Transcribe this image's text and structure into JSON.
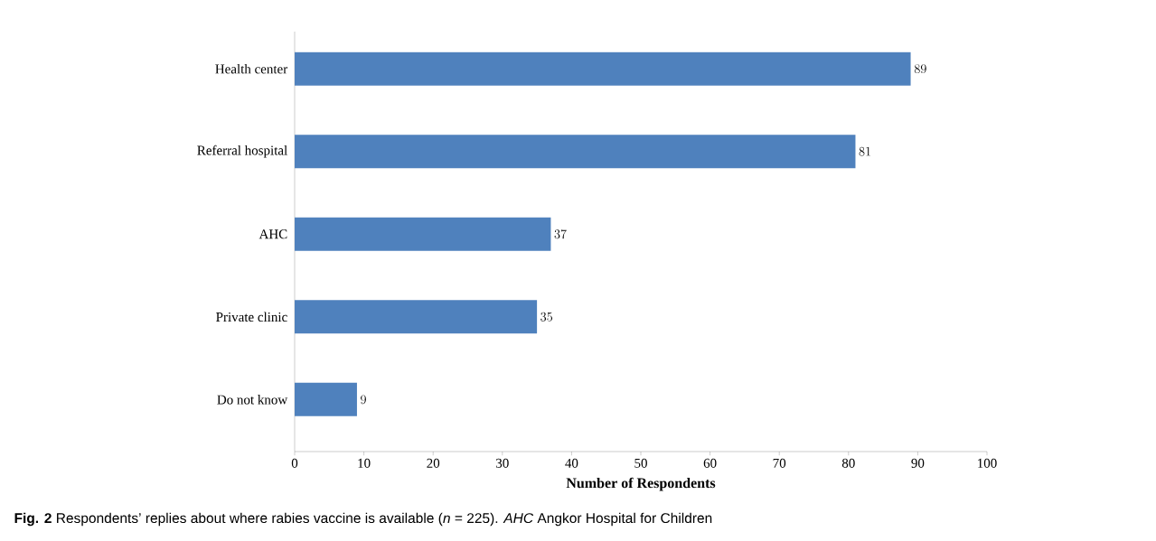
{
  "chart_data": {
    "type": "bar",
    "orientation": "horizontal",
    "categories": [
      "Health center",
      "Referral hospital",
      "AHC",
      "Private clinic",
      "Do not know"
    ],
    "values": [
      89,
      81,
      37,
      35,
      9
    ],
    "color": "#4f81bd",
    "xlim": [
      0,
      100
    ],
    "xticks": [
      0,
      10,
      20,
      30,
      40,
      50,
      60,
      70,
      80,
      90,
      100
    ],
    "xlabel": "Number of Respondents",
    "data_labels": true,
    "annotations": [
      "**Fig. 2** Respondents’ replies about where rabies vaccine is available (*n* = 225). *AHC* Angkor Hospital for Children"
    ]
  }
}
